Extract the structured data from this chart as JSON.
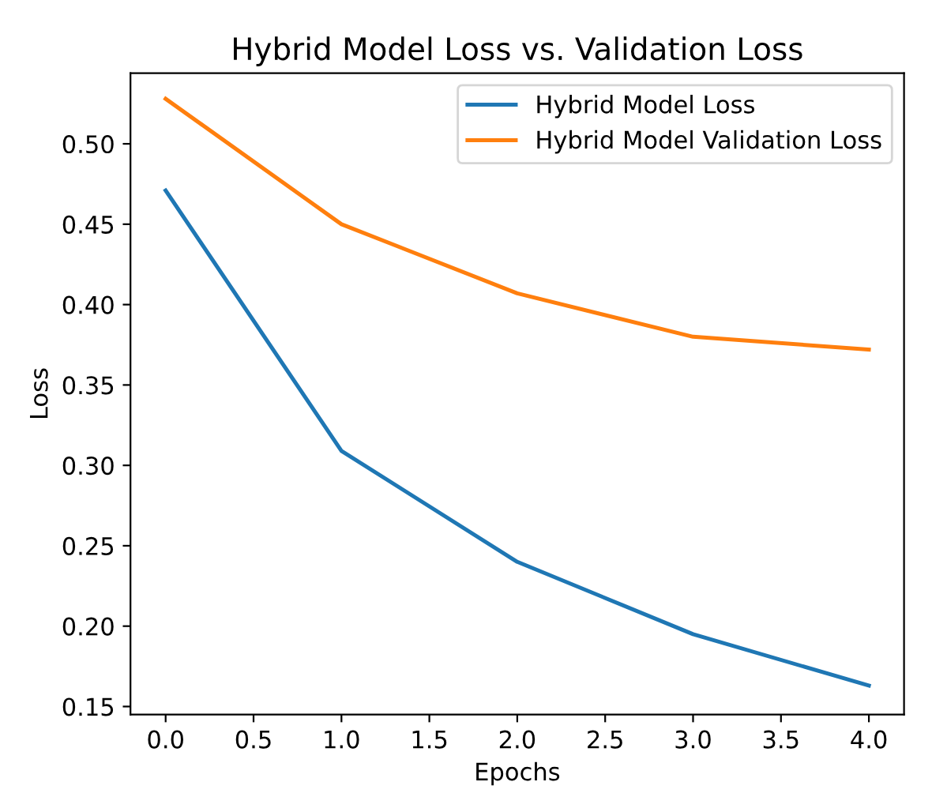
{
  "chart_data": {
    "type": "line",
    "title": "Hybrid Model Loss vs. Validation Loss",
    "xlabel": "Epochs",
    "ylabel": "Loss",
    "x": [
      0,
      1,
      2,
      3,
      4
    ],
    "series": [
      {
        "name": "Hybrid Model Loss",
        "color": "#1f77b4",
        "values": [
          0.471,
          0.309,
          0.24,
          0.195,
          0.163
        ]
      },
      {
        "name": "Hybrid Model Validation Loss",
        "color": "#ff7f0e",
        "values": [
          0.528,
          0.45,
          0.407,
          0.38,
          0.372
        ]
      }
    ],
    "xlim": [
      -0.2,
      4.2
    ],
    "xticks": [
      {
        "value": 0,
        "label": "0.0"
      },
      {
        "value": 0.5,
        "label": "0.5"
      },
      {
        "value": 1,
        "label": "1.0"
      },
      {
        "value": 1.5,
        "label": "1.5"
      },
      {
        "value": 2,
        "label": "2.0"
      },
      {
        "value": 2.5,
        "label": "2.5"
      },
      {
        "value": 3,
        "label": "3.0"
      },
      {
        "value": 3.5,
        "label": "3.5"
      },
      {
        "value": 4,
        "label": "4.0"
      }
    ],
    "ylim": [
      0.145,
      0.544
    ],
    "yticks": [
      {
        "value": 0.15,
        "label": "0.15"
      },
      {
        "value": 0.2,
        "label": "0.20"
      },
      {
        "value": 0.25,
        "label": "0.25"
      },
      {
        "value": 0.3,
        "label": "0.30"
      },
      {
        "value": 0.35,
        "label": "0.35"
      },
      {
        "value": 0.4,
        "label": "0.40"
      },
      {
        "value": 0.45,
        "label": "0.45"
      },
      {
        "value": 0.5,
        "label": "0.50"
      }
    ],
    "legend": "top right",
    "grid": false
  }
}
